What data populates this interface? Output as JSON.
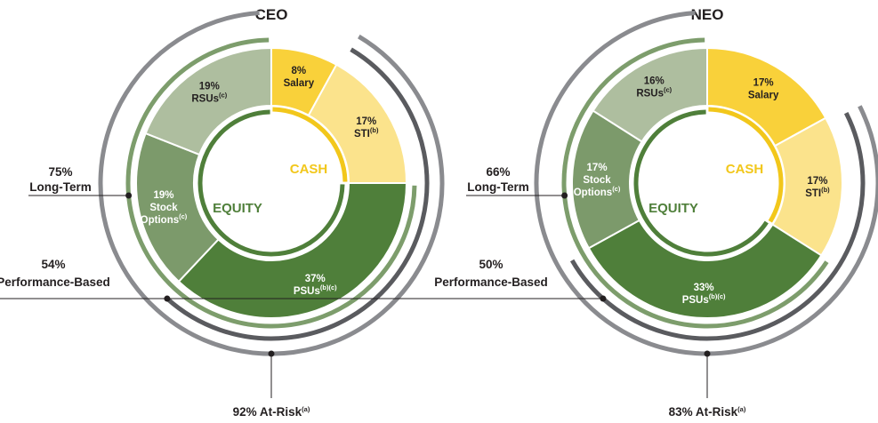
{
  "colors": {
    "salary": "#f9d13a",
    "sti": "#fbe38c",
    "psu": "#4f7f3a",
    "options": "#7c9a6b",
    "rsu": "#aebe9f",
    "cash_ring": "#f2c71b",
    "equity_ring": "#4f7f3a",
    "long_term_arc": "#7d9d6c",
    "performance_arc": "#5a5b5f",
    "at_risk_arc": "#8a8b8f",
    "cash_text": "#f2c71b",
    "equity_text": "#4f7f3a",
    "leader": "#231f20"
  },
  "chart_data": [
    {
      "type": "pie",
      "title": "CEO",
      "center_labels": {
        "cash": "CASH",
        "equity": "EQUITY"
      },
      "slices": [
        {
          "key": "salary",
          "value": 8,
          "pct": "8%",
          "name": "Salary",
          "sup": "",
          "group": "cash"
        },
        {
          "key": "sti",
          "value": 17,
          "pct": "17%",
          "name": "STI",
          "sup": "(b)",
          "group": "cash"
        },
        {
          "key": "psu",
          "value": 37,
          "pct": "37%",
          "name": "PSUs",
          "sup": "(b)(c)",
          "group": "equity"
        },
        {
          "key": "options",
          "value": 19,
          "pct": "19%",
          "name": "Stock Options",
          "sup": "(c)",
          "group": "equity"
        },
        {
          "key": "rsu",
          "value": 19,
          "pct": "19%",
          "name": "RSUs",
          "sup": "(c)",
          "group": "equity"
        }
      ],
      "summary": {
        "long_term": {
          "value": 75,
          "pct": "75%",
          "label": "Long-Term"
        },
        "performance_based": {
          "value": 54,
          "pct": "54%",
          "label": "Performance-Based"
        },
        "at_risk": {
          "value": 92,
          "label": "92% At-Risk",
          "sup": "(a)"
        }
      }
    },
    {
      "type": "pie",
      "title": "NEO",
      "center_labels": {
        "cash": "CASH",
        "equity": "EQUITY"
      },
      "slices": [
        {
          "key": "salary",
          "value": 17,
          "pct": "17%",
          "name": "Salary",
          "sup": "",
          "group": "cash"
        },
        {
          "key": "sti",
          "value": 17,
          "pct": "17%",
          "name": "STI",
          "sup": "(b)",
          "group": "cash"
        },
        {
          "key": "psu",
          "value": 33,
          "pct": "33%",
          "name": "PSUs",
          "sup": "(b)(c)",
          "group": "equity"
        },
        {
          "key": "options",
          "value": 17,
          "pct": "17%",
          "name": "Stock Options",
          "sup": "(c)",
          "group": "equity"
        },
        {
          "key": "rsu",
          "value": 16,
          "pct": "16%",
          "name": "RSUs",
          "sup": "(c)",
          "group": "equity"
        }
      ],
      "summary": {
        "long_term": {
          "value": 66,
          "pct": "66%",
          "label": "Long-Term"
        },
        "performance_based": {
          "value": 50,
          "pct": "50%",
          "label": "Performance-Based"
        },
        "at_risk": {
          "value": 83,
          "label": "83% At-Risk",
          "sup": "(a)"
        }
      }
    }
  ]
}
